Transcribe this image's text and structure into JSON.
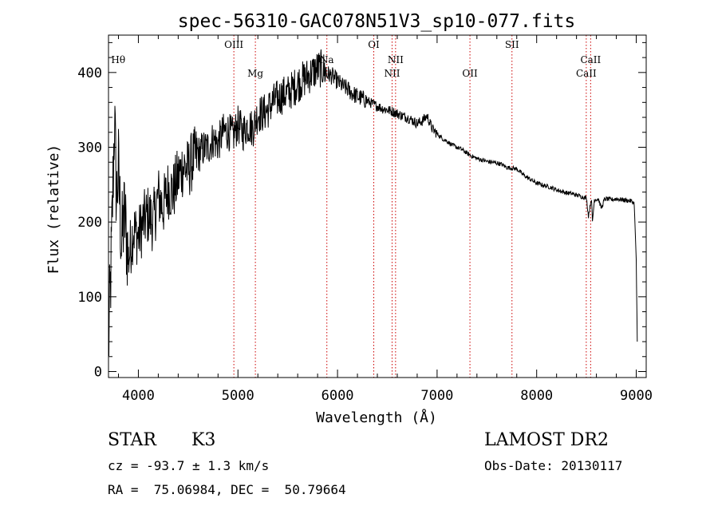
{
  "chart_data": {
    "type": "line",
    "title": "spec-56310-GAC078N51V3_sp10-077.fits",
    "xlabel": "Wavelength (Å)",
    "ylabel": "Flux (relative)",
    "xlim": [
      3700,
      9100
    ],
    "ylim": [
      -8,
      450
    ],
    "xticks": [
      4000,
      5000,
      6000,
      7000,
      8000,
      9000
    ],
    "yticks": [
      0,
      100,
      200,
      300,
      400
    ],
    "x_minor_step": 200,
    "y_minor_step": 20,
    "grid": false,
    "line_color": "#000000",
    "marker_color": "#cc0000",
    "series": [
      {
        "points": [
          [
            3700,
            30
          ],
          [
            3730,
            160
          ],
          [
            3760,
            340
          ],
          [
            3780,
            230
          ],
          [
            3800,
            270
          ],
          [
            3830,
            170
          ],
          [
            3860,
            210
          ],
          [
            3900,
            150
          ],
          [
            3950,
            190
          ],
          [
            4000,
            180
          ],
          [
            4050,
            200
          ],
          [
            4100,
            210
          ],
          [
            4150,
            200
          ],
          [
            4200,
            235
          ],
          [
            4250,
            220
          ],
          [
            4300,
            245
          ],
          [
            4350,
            240
          ],
          [
            4400,
            260
          ],
          [
            4450,
            275
          ],
          [
            4500,
            270
          ],
          [
            4550,
            285
          ],
          [
            4600,
            290
          ],
          [
            4650,
            298
          ],
          [
            4700,
            300
          ],
          [
            4750,
            310
          ],
          [
            4800,
            305
          ],
          [
            4850,
            320
          ],
          [
            4900,
            322
          ],
          [
            4950,
            315
          ],
          [
            5000,
            330
          ],
          [
            5050,
            320
          ],
          [
            5100,
            330
          ],
          [
            5150,
            325
          ],
          [
            5200,
            345
          ],
          [
            5250,
            345
          ],
          [
            5300,
            350
          ],
          [
            5350,
            360
          ],
          [
            5400,
            365
          ],
          [
            5450,
            370
          ],
          [
            5500,
            372
          ],
          [
            5550,
            378
          ],
          [
            5600,
            385
          ],
          [
            5650,
            390
          ],
          [
            5700,
            395
          ],
          [
            5750,
            400
          ],
          [
            5800,
            405
          ],
          [
            5850,
            405
          ],
          [
            5900,
            398
          ],
          [
            5950,
            395
          ],
          [
            6000,
            388
          ],
          [
            6050,
            382
          ],
          [
            6100,
            378
          ],
          [
            6150,
            372
          ],
          [
            6200,
            368
          ],
          [
            6250,
            365
          ],
          [
            6300,
            362
          ],
          [
            6350,
            358
          ],
          [
            6400,
            355
          ],
          [
            6450,
            352
          ],
          [
            6500,
            350
          ],
          [
            6550,
            348
          ],
          [
            6600,
            345
          ],
          [
            6650,
            342
          ],
          [
            6700,
            340
          ],
          [
            6750,
            336
          ],
          [
            6800,
            332
          ],
          [
            6850,
            335
          ],
          [
            6900,
            342
          ],
          [
            6950,
            325
          ],
          [
            7000,
            318
          ],
          [
            7050,
            312
          ],
          [
            7100,
            308
          ],
          [
            7150,
            303
          ],
          [
            7200,
            300
          ],
          [
            7250,
            297
          ],
          [
            7300,
            292
          ],
          [
            7350,
            288
          ],
          [
            7400,
            285
          ],
          [
            7450,
            283
          ],
          [
            7500,
            281
          ],
          [
            7550,
            280
          ],
          [
            7600,
            279
          ],
          [
            7650,
            277
          ],
          [
            7700,
            273
          ],
          [
            7750,
            272
          ],
          [
            7800,
            271
          ],
          [
            7850,
            265
          ],
          [
            7900,
            260
          ],
          [
            7950,
            256
          ],
          [
            8000,
            252
          ],
          [
            8050,
            250
          ],
          [
            8100,
            248
          ],
          [
            8150,
            246
          ],
          [
            8200,
            243
          ],
          [
            8250,
            241
          ],
          [
            8300,
            239
          ],
          [
            8350,
            238
          ],
          [
            8400,
            236
          ],
          [
            8450,
            234
          ],
          [
            8500,
            232
          ],
          [
            8520,
            208
          ],
          [
            8550,
            232
          ],
          [
            8560,
            200
          ],
          [
            8580,
            230
          ],
          [
            8620,
            231
          ],
          [
            8650,
            218
          ],
          [
            8680,
            230
          ],
          [
            8700,
            231
          ],
          [
            8750,
            230
          ],
          [
            8800,
            231
          ],
          [
            8850,
            230
          ],
          [
            8900,
            229
          ],
          [
            8950,
            228
          ],
          [
            8980,
            225
          ],
          [
            9000,
            150
          ],
          [
            9010,
            40
          ]
        ]
      }
    ],
    "lines": [
      {
        "label": "Hθ",
        "x": 3798,
        "row": 1,
        "marker": false
      },
      {
        "label": "OIII",
        "x": 4959,
        "row": 0,
        "marker": true
      },
      {
        "label": "Mg",
        "x": 5175,
        "row": 2,
        "marker": true
      },
      {
        "label": "Na",
        "x": 5893,
        "row": 1,
        "marker": true
      },
      {
        "label": "OI",
        "x": 6364,
        "row": 0,
        "marker": true
      },
      {
        "label": "NII",
        "x": 6548,
        "row": 2,
        "marker": true
      },
      {
        "label": "NII",
        "x": 6583,
        "row": 1,
        "marker": true
      },
      {
        "label": "OII",
        "x": 7330,
        "row": 2,
        "marker": true
      },
      {
        "label": "SII",
        "x": 7752,
        "row": 0,
        "marker": true
      },
      {
        "label": "CaII",
        "x": 8498,
        "row": 2,
        "marker": true
      },
      {
        "label": "CaII",
        "x": 8542,
        "row": 1,
        "marker": true
      }
    ]
  },
  "info": {
    "object_class": "STAR",
    "subclass": "K3",
    "survey": "LAMOST DR2",
    "cz": "cz = -93.7 ± 1.3 km/s",
    "obs_date": "Obs-Date: 20130117",
    "coords": "RA =  75.06984, DEC =  50.79664"
  }
}
